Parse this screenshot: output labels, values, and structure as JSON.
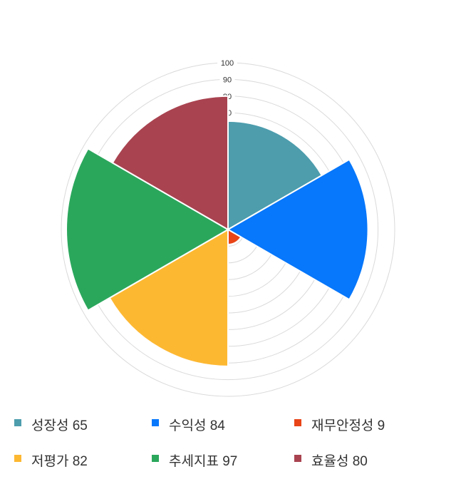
{
  "chart_data": {
    "type": "polar_area",
    "title": "",
    "categories": [
      "성장성",
      "수익성",
      "재무안정성",
      "저평가",
      "추세지표",
      "효율성"
    ],
    "values": [
      65,
      84,
      9,
      82,
      97,
      80
    ],
    "colors": [
      "#4D9DAD",
      "#0777FB",
      "#E84417",
      "#FDB832",
      "#2BA75C",
      "#A94350"
    ],
    "series_label_format": "{label} {value}",
    "axis": {
      "min": 0,
      "max": 100,
      "tick_interval": 10,
      "visible_tick_labels": [
        "100",
        "90",
        "80",
        "70"
      ],
      "tick_label_color": "#333333",
      "grid_color": "#DADADA"
    },
    "sector_angle_deg": 60,
    "start_angle_deg": 0,
    "direction": "clockwise",
    "grid": true,
    "legend": {
      "position": "bottom",
      "items": [
        {
          "label": "성장성",
          "value": 65,
          "color": "#4D9DAD"
        },
        {
          "label": "수익성",
          "value": 84,
          "color": "#0777FB"
        },
        {
          "label": "재무안정성",
          "value": 9,
          "color": "#E84417"
        },
        {
          "label": "저평가",
          "value": 82,
          "color": "#FDB832"
        },
        {
          "label": "추세지표",
          "value": 97,
          "color": "#2BA75C"
        },
        {
          "label": "효율성",
          "value": 80,
          "color": "#A94350"
        }
      ]
    }
  }
}
